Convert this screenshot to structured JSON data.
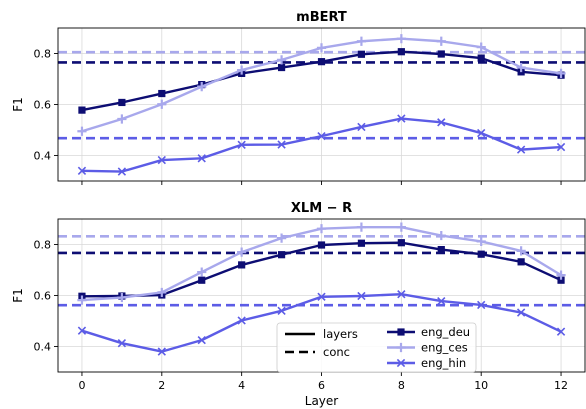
{
  "chart_data": {
    "type": "line",
    "xlabel": "Layer",
    "ylabel": "F1",
    "x": [
      0,
      1,
      2,
      3,
      4,
      5,
      6,
      7,
      8,
      9,
      10,
      11,
      12
    ],
    "xticks": [
      0,
      2,
      4,
      6,
      8,
      10,
      12
    ],
    "yticks": [
      "0.4",
      "0.6",
      "0.8"
    ],
    "colors": {
      "eng_deu": "#0d0d73",
      "eng_ces": "#a8a8ec",
      "eng_hin": "#5c5ce6"
    },
    "panels": [
      {
        "title": "mBERT",
        "ylim": [
          0.3,
          0.9
        ],
        "series": [
          {
            "name": "eng_deu",
            "marker": "square",
            "values": [
              0.578,
              0.608,
              0.643,
              0.678,
              0.722,
              0.745,
              0.768,
              0.797,
              0.807,
              0.798,
              0.782,
              0.728,
              0.715
            ]
          },
          {
            "name": "eng_ces",
            "marker": "plus",
            "values": [
              0.495,
              0.543,
              0.601,
              0.67,
              0.735,
              0.775,
              0.822,
              0.848,
              0.858,
              0.848,
              0.825,
              0.745,
              0.722
            ]
          },
          {
            "name": "eng_hin",
            "marker": "x",
            "values": [
              0.34,
              0.337,
              0.382,
              0.389,
              0.442,
              0.443,
              0.476,
              0.512,
              0.545,
              0.53,
              0.488,
              0.423,
              0.433
            ]
          }
        ],
        "conc": [
          {
            "name": "eng_deu",
            "value": 0.765
          },
          {
            "name": "eng_ces",
            "value": 0.805
          },
          {
            "name": "eng_hin",
            "value": 0.468
          }
        ]
      },
      {
        "title": "XLM − R",
        "ylim": [
          0.3,
          0.9
        ],
        "series": [
          {
            "name": "eng_deu",
            "marker": "square",
            "values": [
              0.597,
              0.598,
              0.602,
              0.66,
              0.72,
              0.76,
              0.798,
              0.805,
              0.807,
              0.78,
              0.762,
              0.732,
              0.66
            ]
          },
          {
            "name": "eng_ces",
            "marker": "plus",
            "values": [
              0.582,
              0.592,
              0.612,
              0.692,
              0.77,
              0.825,
              0.862,
              0.868,
              0.868,
              0.835,
              0.812,
              0.775,
              0.68
            ]
          },
          {
            "name": "eng_hin",
            "marker": "x",
            "values": [
              0.462,
              0.413,
              0.38,
              0.425,
              0.502,
              0.54,
              0.595,
              0.598,
              0.605,
              0.578,
              0.563,
              0.533,
              0.458
            ]
          }
        ],
        "conc": [
          {
            "name": "eng_deu",
            "value": 0.767
          },
          {
            "name": "eng_ces",
            "value": 0.832
          },
          {
            "name": "eng_hin",
            "value": 0.562
          }
        ]
      }
    ],
    "legend": {
      "styles": [
        {
          "label": "layers",
          "dash": false
        },
        {
          "label": "conc",
          "dash": true
        }
      ],
      "series": [
        "eng_deu",
        "eng_ces",
        "eng_hin"
      ]
    }
  }
}
